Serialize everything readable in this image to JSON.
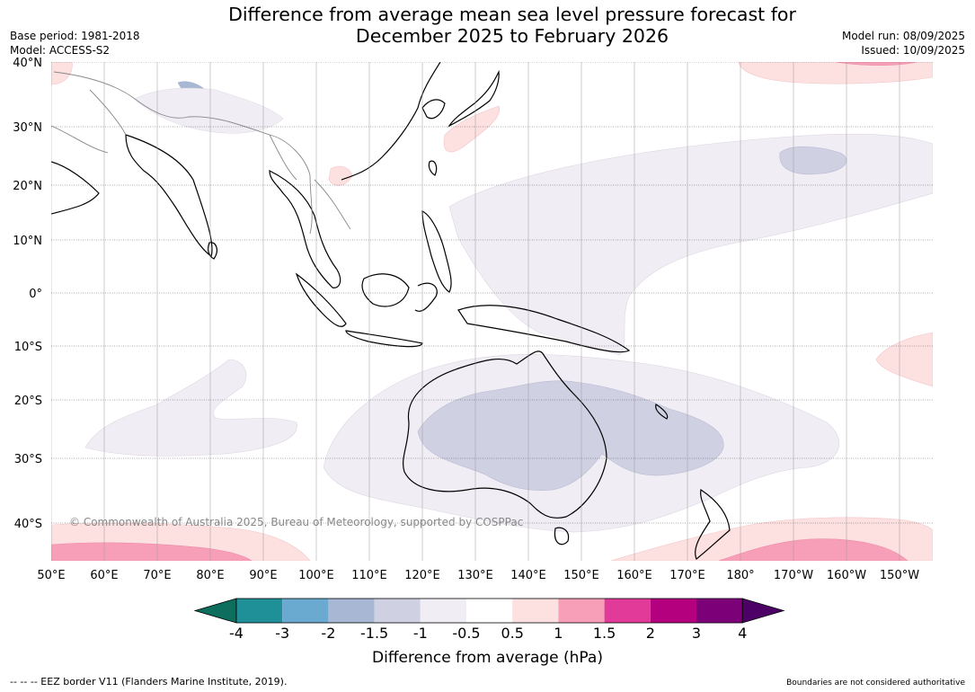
{
  "title_line1": "Difference from average mean sea level pressure forecast for",
  "title_line2": "December 2025 to February 2026",
  "base_period": "Base period: 1981-2018",
  "model": "Model: ACCESS-S2",
  "model_run": "Model run: 08/09/2025",
  "issued": "Issued: 10/09/2025",
  "copyright": "© Commonwealth of Australia 2025, Bureau of Meteorology, supported by COSPPac",
  "lat_labels": [
    "40°N",
    "30°N",
    "20°N",
    "10°N",
    "0°",
    "10°S",
    "20°S",
    "30°S",
    "40°S"
  ],
  "lon_labels": [
    "50°E",
    "60°E",
    "70°E",
    "80°E",
    "90°E",
    "100°E",
    "110°E",
    "120°E",
    "130°E",
    "140°E",
    "150°E",
    "160°E",
    "170°E",
    "180°",
    "170°W",
    "160°W",
    "150°W"
  ],
  "colorbar": {
    "label": "Difference from average (hPa)",
    "ticks": [
      "-4",
      "-3",
      "-2",
      "-1.5",
      "-1",
      "-0.5",
      "0.5",
      "1",
      "1.5",
      "2",
      "3",
      "4"
    ],
    "colors": [
      "#0e6e5e",
      "#1f8f98",
      "#6aa9d0",
      "#a8b8d4",
      "#cfd0e2",
      "#f1edf4",
      "#ffffff",
      "#fde0e0",
      "#f79fb8",
      "#e23a98",
      "#b4007e",
      "#7c0078",
      "#4d0066"
    ]
  },
  "eez_note": "--  --  -- EEZ border V11 (Flanders Marine Institute, 2019).",
  "boundaries_note": "Boundaries are not considered authoritative"
}
